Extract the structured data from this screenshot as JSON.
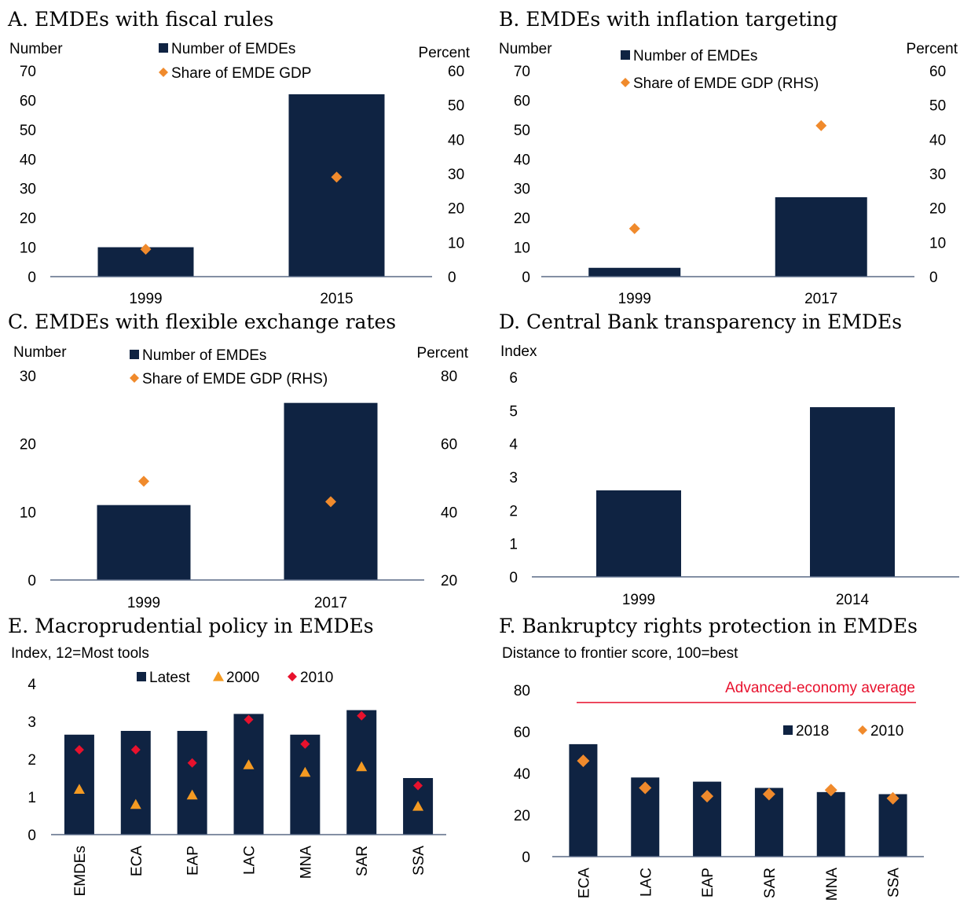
{
  "colors": {
    "bar": "#0f2342",
    "diamond_orange": "#f08a2c",
    "triangle_orange": "#f49a22",
    "diamond_red": "#e8112d",
    "reference_line": "#e8112d",
    "axis": "#5a6a86"
  },
  "panels": [
    {
      "title": "A. EMDEs with fiscal rules"
    },
    {
      "title": "B. EMDEs with inflation targeting"
    },
    {
      "title": "C. EMDEs with flexible exchange rates"
    },
    {
      "title": "D. Central Bank transparency in EMDEs"
    },
    {
      "title": "E. Macroprudential policy in EMDEs"
    },
    {
      "title": "F. Bankruptcy rights protection in EMDEs"
    }
  ],
  "chart_data": [
    {
      "type": "bar",
      "title": "A. EMDEs with fiscal rules",
      "categories": [
        "1999",
        "2015"
      ],
      "ylabel": "Number",
      "y2label": "Percent",
      "ylim": [
        0,
        70
      ],
      "yticks": [
        0,
        10,
        20,
        30,
        40,
        50,
        60,
        70
      ],
      "y2lim": [
        0,
        60
      ],
      "y2ticks": [
        0,
        10,
        20,
        30,
        40,
        50,
        60
      ],
      "series": [
        {
          "name": "Number of EMDEs",
          "kind": "bar",
          "axis": "left",
          "values": [
            10,
            62
          ]
        },
        {
          "name": "Share of EMDE GDP",
          "kind": "diamond",
          "axis": "right",
          "values": [
            8,
            29
          ]
        }
      ],
      "legend": "top-center"
    },
    {
      "type": "bar",
      "title": "B. EMDEs with inflation targeting",
      "categories": [
        "1999",
        "2017"
      ],
      "ylabel": "Number",
      "y2label": "Percent",
      "ylim": [
        0,
        70
      ],
      "yticks": [
        0,
        10,
        20,
        30,
        40,
        50,
        60,
        70
      ],
      "y2lim": [
        0,
        60
      ],
      "y2ticks": [
        0,
        10,
        20,
        30,
        40,
        50,
        60
      ],
      "series": [
        {
          "name": "Number of EMDEs",
          "kind": "bar",
          "axis": "left",
          "values": [
            3,
            27
          ]
        },
        {
          "name": "Share of EMDE GDP (RHS)",
          "kind": "diamond",
          "axis": "right",
          "values": [
            14,
            44
          ]
        }
      ],
      "legend": "top-center"
    },
    {
      "type": "bar",
      "title": "C. EMDEs with flexible exchange rates",
      "categories": [
        "1999",
        "2017"
      ],
      "ylabel": "Number",
      "y2label": "Percent",
      "ylim": [
        0,
        30
      ],
      "yticks": [
        0,
        10,
        20,
        30
      ],
      "y2lim": [
        20,
        80
      ],
      "y2ticks": [
        20,
        40,
        60,
        80
      ],
      "series": [
        {
          "name": "Number of EMDEs",
          "kind": "bar",
          "axis": "left",
          "values": [
            11,
            26
          ]
        },
        {
          "name": "Share of EMDE GDP (RHS)",
          "kind": "diamond",
          "axis": "right",
          "values": [
            49,
            43
          ]
        }
      ],
      "legend": "top-center"
    },
    {
      "type": "bar",
      "title": "D. Central Bank transparency in EMDEs",
      "categories": [
        "1999",
        "2014"
      ],
      "ylabel": "Index",
      "ylim": [
        0,
        6
      ],
      "yticks": [
        0,
        1,
        2,
        3,
        4,
        5,
        6
      ],
      "series": [
        {
          "kind": "bar",
          "axis": "left",
          "values": [
            2.6,
            5.1
          ]
        }
      ]
    },
    {
      "type": "bar",
      "title": "E. Macroprudential policy in EMDEs",
      "categories": [
        "EMDEs",
        "ECA",
        "EAP",
        "LAC",
        "MNA",
        "SAR",
        "SSA"
      ],
      "ylabel": "Index, 12=Most tools",
      "ylim": [
        0,
        4
      ],
      "yticks": [
        0,
        1,
        2,
        3,
        4
      ],
      "series": [
        {
          "name": "Latest",
          "kind": "bar",
          "values": [
            2.65,
            2.75,
            2.75,
            3.2,
            2.65,
            3.3,
            1.5
          ]
        },
        {
          "name": "2000",
          "kind": "triangle",
          "values": [
            1.2,
            0.8,
            1.05,
            1.85,
            1.65,
            1.8,
            0.75
          ]
        },
        {
          "name": "2010",
          "kind": "diamond-red",
          "values": [
            2.25,
            2.25,
            1.9,
            3.05,
            2.4,
            3.15,
            1.3
          ]
        }
      ],
      "legend": "top-center"
    },
    {
      "type": "bar",
      "title": "F. Bankruptcy rights protection in EMDEs",
      "categories": [
        "ECA",
        "LAC",
        "EAP",
        "SAR",
        "MNA",
        "SSA"
      ],
      "ylabel": "Distance to frontier score, 100=best",
      "ylim": [
        0,
        80
      ],
      "yticks": [
        0,
        20,
        40,
        60,
        80
      ],
      "series": [
        {
          "name": "2018",
          "kind": "bar",
          "values": [
            54,
            38,
            36,
            33,
            31,
            30
          ]
        },
        {
          "name": "2010",
          "kind": "diamond",
          "values": [
            46,
            33,
            29,
            30,
            32,
            28
          ]
        }
      ],
      "reference_line": {
        "label": "Advanced-economy average",
        "value": 74
      },
      "legend": "top-right"
    }
  ]
}
